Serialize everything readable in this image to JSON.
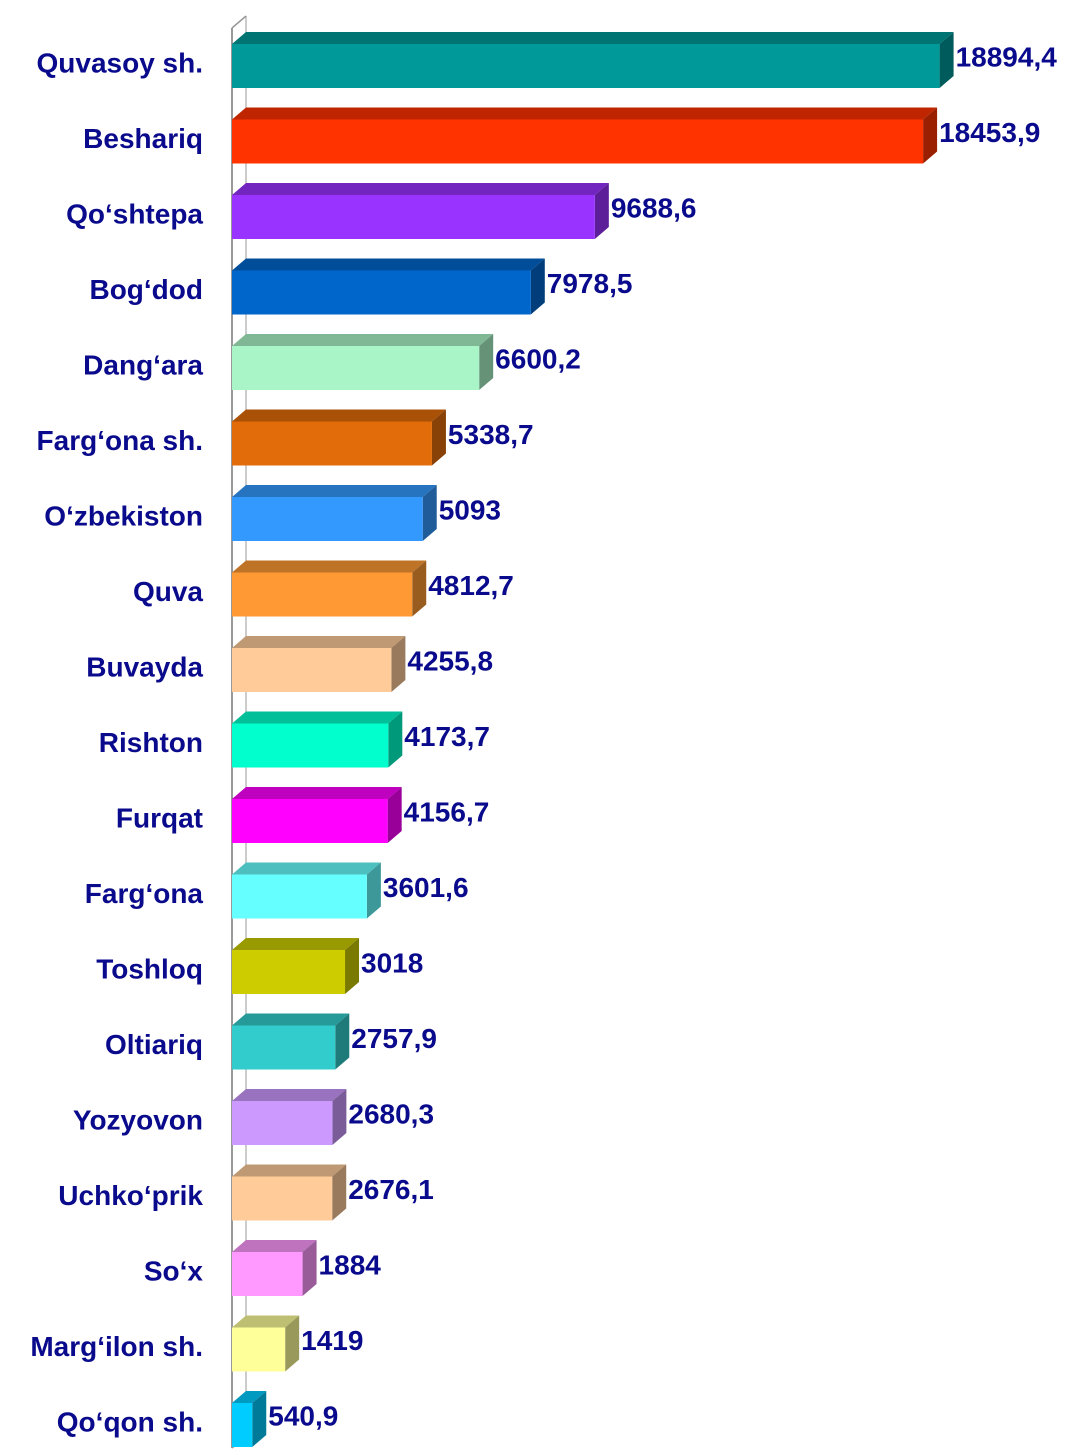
{
  "chart_data": {
    "type": "bar",
    "orientation": "horizontal",
    "categories": [
      "Quvasoy sh.",
      "Beshariq",
      "Qo‘shtepa",
      "Bog‘dod",
      "Dang‘ara",
      "Farg‘ona sh.",
      "O‘zbekiston",
      "Quva",
      "Buvayda",
      "Rishton",
      "Furqat",
      "Farg‘ona",
      "Toshloq",
      "Oltiariq",
      "Yozyovon",
      "Uchko‘prik",
      "So‘x",
      "Marg‘ilon sh.",
      "Qo‘qon sh."
    ],
    "values": [
      18894.4,
      18453.9,
      9688.6,
      7978.5,
      6600.2,
      5338.7,
      5093,
      4812.7,
      4255.8,
      4173.7,
      4156.7,
      3601.6,
      3018,
      2757.9,
      2680.3,
      2676.1,
      1884,
      1419,
      540.9
    ],
    "value_labels": [
      "18894,4",
      "18453,9",
      "9688,6",
      "7978,5",
      "6600,2",
      "5338,7",
      "5093",
      "4812,7",
      "4255,8",
      "4173,7",
      "4156,7",
      "3601,6",
      "3018",
      "2757,9",
      "2680,3",
      "2676,1",
      "1884",
      "1419",
      "540,9"
    ],
    "colors": [
      "#009999",
      "#ff3300",
      "#9933ff",
      "#0066cc",
      "#aaf5c8",
      "#e36c0a",
      "#3399ff",
      "#ff9933",
      "#ffcc99",
      "#00ffcc",
      "#ff00ff",
      "#66ffff",
      "#cccc00",
      "#33cccc",
      "#cc99ff",
      "#ffcc99",
      "#ff99ff",
      "#ffff99",
      "#00ccff"
    ],
    "xlim": [
      0,
      20000
    ]
  }
}
